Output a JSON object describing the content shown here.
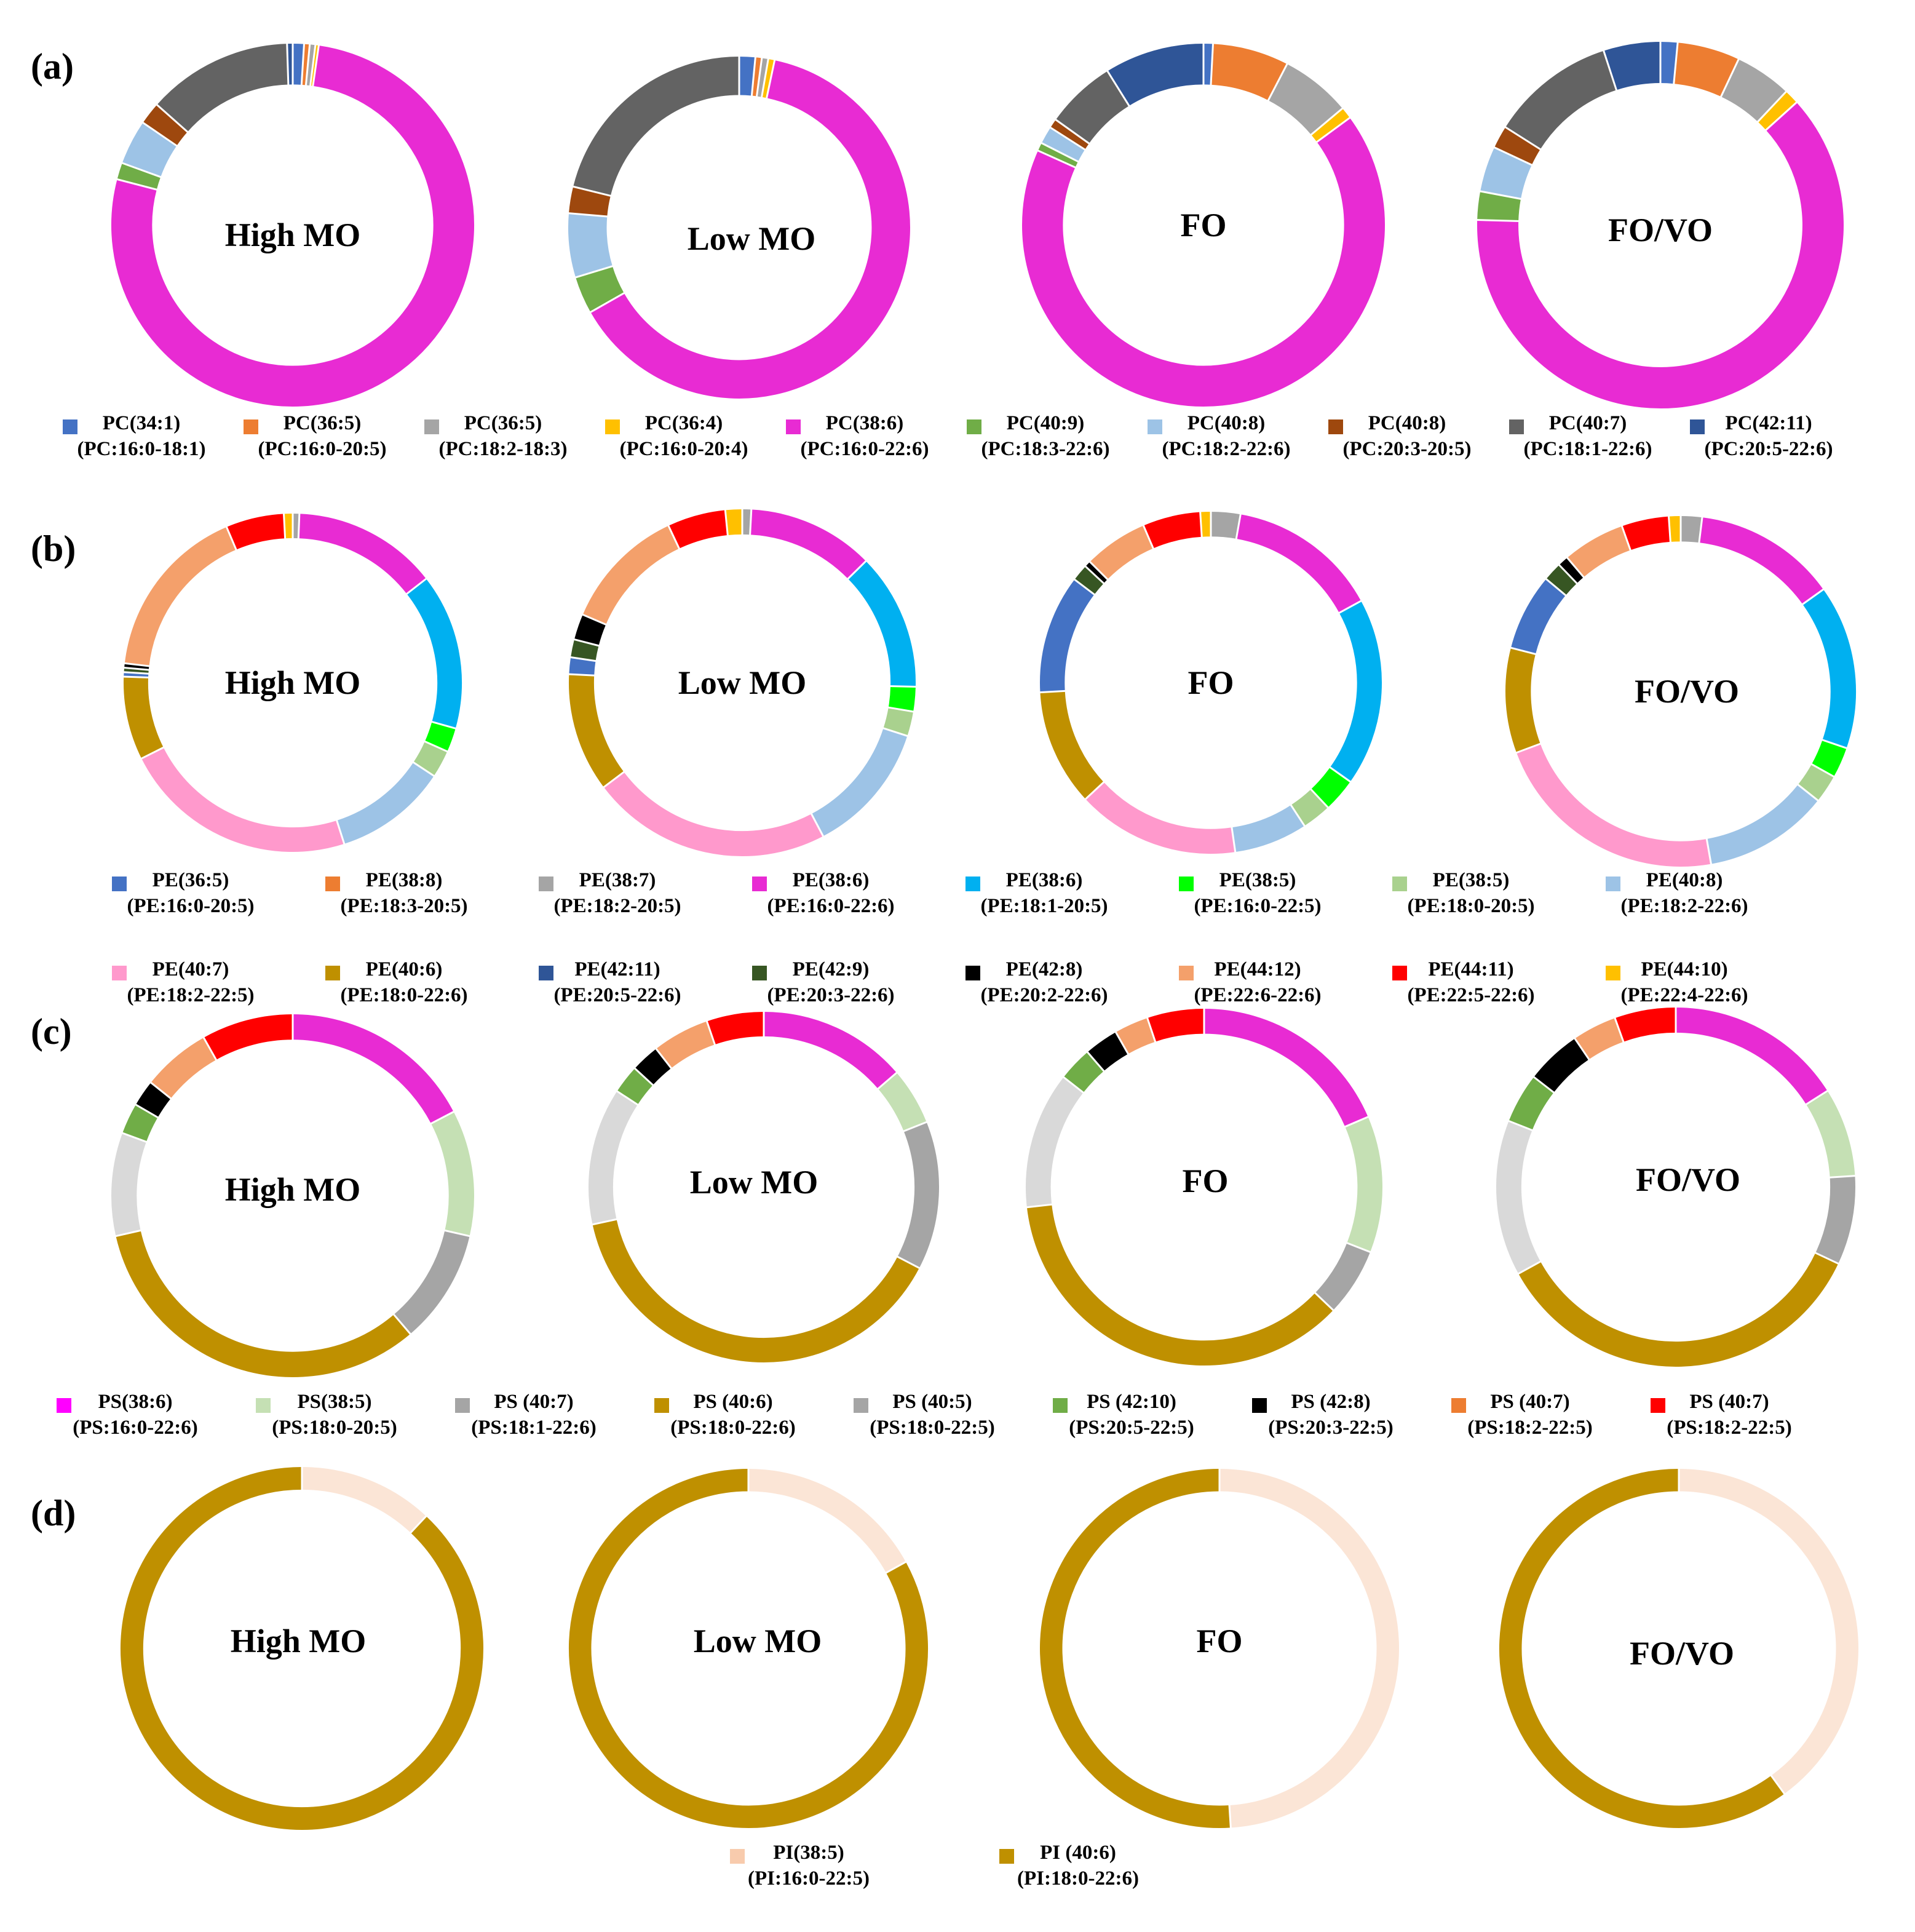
{
  "chart_data": [
    {
      "type": "donut",
      "panel_label": "(a)",
      "legend": [
        {
          "name": "PC(34:1)",
          "sub": "(PC:16:0-18:1)",
          "color": "#4472C4"
        },
        {
          "name": "PC(36:5)",
          "sub": "(PC:16:0-20:5)",
          "color": "#ED7D31"
        },
        {
          "name": "PC(36:5)",
          "sub": "(PC:18:2-18:3)",
          "color": "#A5A5A5"
        },
        {
          "name": "PC(36:4)",
          "sub": "(PC:16:0-20:4)",
          "color": "#FFC000"
        },
        {
          "name": "PC(38:6)",
          "sub": "(PC:16:0-22:6)",
          "color": "#E82BD3"
        },
        {
          "name": "PC(40:9)",
          "sub": "(PC:18:3-22:6)",
          "color": "#70AD47"
        },
        {
          "name": "PC(40:8)",
          "sub": "(PC:18:2-22:6)",
          "color": "#9DC3E6"
        },
        {
          "name": "PC(40:8)",
          "sub": "(PC:20:3-20:5)",
          "color": "#9E480E"
        },
        {
          "name": "PC(40:7)",
          "sub": "(PC:18:1-22:6)",
          "color": "#636363"
        },
        {
          "name": "PC(42:11)",
          "sub": "(PC:20:5-22:6)",
          "color": "#2F5597"
        }
      ],
      "charts": [
        {
          "label": "High MO",
          "values": [
            1,
            0.5,
            0.5,
            0.3,
            77,
            1.5,
            4,
            2,
            13,
            0.5
          ]
        },
        {
          "label": "Low MO",
          "values": [
            1.5,
            0.6,
            0.6,
            0.6,
            63,
            3.5,
            6,
            2.5,
            21,
            0
          ]
        },
        {
          "label": "FO",
          "values": [
            0.8,
            6.5,
            6,
            1,
            64,
            0.7,
            1.5,
            0.8,
            6,
            8.5
          ]
        },
        {
          "label": "FO/VO",
          "values": [
            1.5,
            5.5,
            5,
            1.3,
            62,
            2.5,
            4,
            2,
            11,
            5
          ]
        }
      ]
    },
    {
      "type": "donut",
      "panel_label": "(b)",
      "legend": [
        {
          "name": "PE(36:5)",
          "sub": "(PE:16:0-20:5)",
          "color": "#4472C4"
        },
        {
          "name": "PE(38:8)",
          "sub": "(PE:18:3-20:5)",
          "color": "#ED7D31"
        },
        {
          "name": "PE(38:7)",
          "sub": "(PE:18:2-20:5)",
          "color": "#A5A5A5"
        },
        {
          "name": "PE(38:6)",
          "sub": "(PE:16:0-22:6)",
          "color": "#E82BD3"
        },
        {
          "name": "PE(38:6)",
          "sub": "(PE:18:1-20:5)",
          "color": "#00B0F0"
        },
        {
          "name": "PE(38:5)",
          "sub": "(PE:16:0-22:5)",
          "color": "#00FF00"
        },
        {
          "name": "PE(38:5)",
          "sub": "(PE:18:0-20:5)",
          "color": "#A9D18E"
        },
        {
          "name": "PE(40:8)",
          "sub": "(PE:18:2-22:6)",
          "color": "#9DC3E6"
        },
        {
          "name": "PE(40:7)",
          "sub": "(PE:18:2-22:5)",
          "color": "#FF99CC"
        },
        {
          "name": "PE(40:6)",
          "sub": "(PE:18:0-22:6)",
          "color": "#BF9000"
        },
        {
          "name": "PE(42:11)",
          "sub": "(PE:20:5-22:6)",
          "color": "#2F5597"
        },
        {
          "name": "PE(42:9)",
          "sub": "(PE:20:3-22:6)",
          "color": "#375623"
        },
        {
          "name": "PE(42:8)",
          "sub": "(PE:20:2-22:6)",
          "color": "#000000"
        },
        {
          "name": "PE(44:12)",
          "sub": "(PE:22:6-22:6)",
          "color": "#F4A06B"
        },
        {
          "name": "PE(44:11)",
          "sub": "(PE:22:5-22:6)",
          "color": "#FF0000"
        },
        {
          "name": "PE(44:10)",
          "sub": "(PE:22:4-22:6)",
          "color": "#FFC000"
        }
      ],
      "order": [
        2,
        3,
        4,
        5,
        6,
        7,
        8,
        9,
        0,
        11,
        12,
        13,
        14,
        15
      ],
      "charts": [
        {
          "label": "High MO",
          "values": [
            0.6,
            13.2,
            14.2,
            2.2,
            2.5,
            10.3,
            21.5,
            7.6,
            0.4,
            0.4,
            0.4,
            16,
            5.3,
            0.8
          ]
        },
        {
          "label": "Low MO",
          "values": [
            0.8,
            11.3,
            12.2,
            2.2,
            2.2,
            11.8,
            21.5,
            10.6,
            1.5,
            1.6,
            2.3,
            11.1,
            5.2,
            1.5
          ]
        },
        {
          "label": "FO",
          "values": [
            2.8,
            14.4,
            17.9,
            3.2,
            2.8,
            7,
            15.5,
            11.1,
            11.3,
            1.6,
            0.6,
            6.1,
            5.5,
            1
          ]
        },
        {
          "label": "FO/VO",
          "values": [
            1.8,
            12.1,
            13.9,
            2.6,
            2.4,
            10.6,
            20.3,
            8.9,
            6.5,
            1.6,
            0.9,
            5.3,
            4,
            1
          ]
        }
      ]
    },
    {
      "type": "donut",
      "panel_label": "(c)",
      "legend": [
        {
          "name": "PS(38:6)",
          "sub": "(PS:16:0-22:6)",
          "color": "#FF00FF"
        },
        {
          "name": "PS(38:5)",
          "sub": "(PS:18:0-20:5)",
          "color": "#C5E0B4"
        },
        {
          "name": "PS (40:7)",
          "sub": "(PS:18:1-22:6)",
          "color": "#A5A5A5"
        },
        {
          "name": "PS (40:6)",
          "sub": "(PS:18:0-22:6)",
          "color": "#BF9000"
        },
        {
          "name": "PS (40:5)",
          "sub": "(PS:18:0-22:5)",
          "color": "#A5A5A5"
        },
        {
          "name": "PS (42:10)",
          "sub": "(PS:20:5-22:5)",
          "color": "#70AD47"
        },
        {
          "name": "PS (42:8)",
          "sub": "(PS:20:3-22:5)",
          "color": "#000000"
        },
        {
          "name": "PS (40:7)",
          "sub": "(PS:18:2-22:5)",
          "color": "#ED7D31"
        },
        {
          "name": "PS (40:7)",
          "sub": "(PS:18:2-22:5)",
          "color": "#FF0000"
        }
      ],
      "segment_colors": [
        "#E82BD3",
        "#C5E0B4",
        "#A5A5A5",
        "#BF9000",
        "#D9D9D9",
        "#70AD47",
        "#000000",
        "#F4A06B",
        "#FF0000"
      ],
      "charts": [
        {
          "label": "High MO",
          "values": [
            17,
            11,
            10,
            32,
            9,
            2.7,
            2.3,
            6,
            8
          ]
        },
        {
          "label": "Low MO",
          "values": [
            13,
            5,
            13,
            37,
            12,
            2.5,
            2.5,
            5,
            5
          ]
        },
        {
          "label": "FO",
          "values": [
            18,
            12,
            6,
            35,
            12,
            3,
            3,
            3,
            5
          ]
        },
        {
          "label": "FO/VO",
          "values": [
            16,
            8,
            8,
            35,
            14,
            4.5,
            5,
            4,
            5.5
          ]
        }
      ]
    },
    {
      "type": "donut",
      "panel_label": "(d)",
      "legend": [
        {
          "name": "PI(38:5)",
          "sub": "(PI:16:0-22:5)",
          "color": "#F8CBAD"
        },
        {
          "name": "PI (40:6)",
          "sub": "(PI:18:0-22:6)",
          "color": "#BF9000"
        }
      ],
      "segment_colors": [
        "#FBE5D6",
        "#BF9000"
      ],
      "charts": [
        {
          "label": "High MO",
          "values": [
            12,
            88
          ]
        },
        {
          "label": "Low MO",
          "values": [
            17,
            83
          ]
        },
        {
          "label": "FO",
          "values": [
            49,
            51
          ]
        },
        {
          "label": "FO/VO",
          "values": [
            40,
            60
          ]
        }
      ]
    }
  ]
}
